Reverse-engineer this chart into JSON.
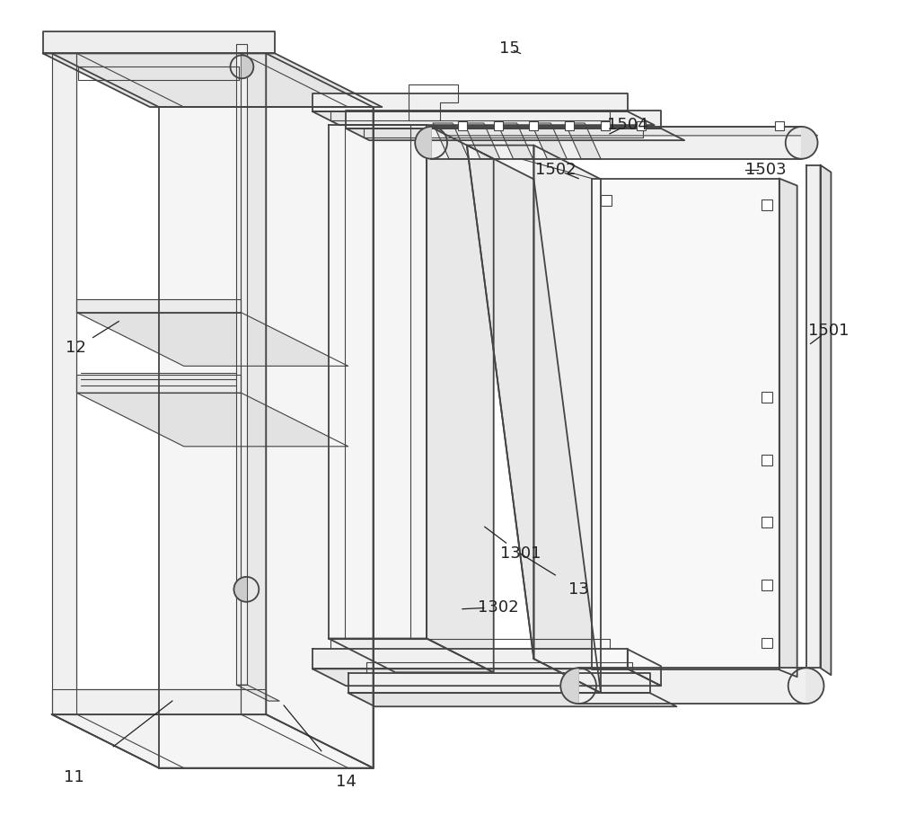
{
  "bg_color": "#ffffff",
  "line_color": "#444444",
  "lw": 1.3,
  "tlw": 0.8,
  "ann_fs": 13,
  "ann_color": "#222222"
}
